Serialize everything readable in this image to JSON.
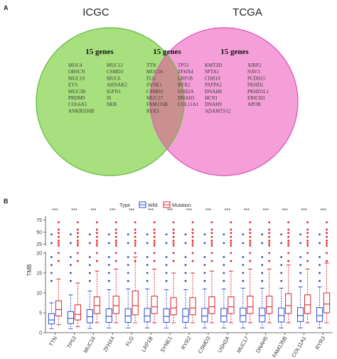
{
  "panel_a": {
    "label": "A",
    "left_set": "ICGC",
    "right_set": "TCGA",
    "left_count": "15 genes",
    "overlap_count": "15 genes",
    "right_count": "15 genes",
    "left_genes_col1": [
      "MUC4",
      "OBSCN",
      "MUC19",
      "EYS",
      "MUC5B",
      "PRDM9",
      "COL6A5",
      "ANKRD30B"
    ],
    "left_genes_col2": [
      "MUC12",
      "CSMD3",
      "MUC6",
      "AHNAK2",
      "IGFN1",
      "SI",
      "NEB"
    ],
    "overlap_genes_col1": [
      "TTN",
      "MUC16",
      "FLG",
      "SYNE1",
      "CSMD3",
      "MUC17",
      "FAM135B",
      "RYR3"
    ],
    "overlap_genes_col2": [
      "TP53",
      "ZFHX4",
      "LRP1B",
      "RYR2",
      "USH2A",
      "DNAH5",
      "COL11A1"
    ],
    "right_genes_col1": [
      "KMT2D",
      "SPTA1",
      "CDH10",
      "PAPPA2",
      "DNAH8",
      "HCN1",
      "DNAH9",
      "ADAMTS12"
    ],
    "right_genes_col2": [
      "XIRP2",
      "NAV3",
      "PCDH15",
      "PKHD1",
      "PKHD1L1",
      "ERICH3",
      "APOB"
    ],
    "colors": {
      "left_fill": "#a8e07f",
      "left_stroke": "#6fbd4a",
      "right_fill": "#f59fd8",
      "right_stroke": "#e05cbf",
      "overlap_fill": "#c9908e"
    }
  },
  "panel_b": {
    "label": "B",
    "chart_data": {
      "type": "boxplot",
      "legend_title": "Type",
      "legend_position": "top",
      "series": [
        {
          "name": "Wild",
          "color": "#2c4bd6"
        },
        {
          "name": "Mutation",
          "color": "#e0242b"
        }
      ],
      "ylabel": "TMB",
      "y_ticks_lower": [
        0,
        5,
        10,
        15,
        20
      ],
      "y_ticks_upper": [
        25,
        50,
        75
      ],
      "y_lower_range": [
        0,
        20
      ],
      "y_upper_range": [
        21,
        80
      ],
      "significance_label": "***",
      "categories": [
        "TTN",
        "TP53",
        "MUC16",
        "ZFHX4",
        "FLG",
        "LRP1B",
        "SYNE1",
        "RYR2",
        "CSMD3",
        "USH2A",
        "MUC17",
        "DNAH5",
        "FAM135B",
        "COL11A1",
        "RYR3"
      ],
      "wild": [
        [
          1.0,
          2.2,
          3.2,
          4.8,
          7.5
        ],
        [
          1.0,
          2.3,
          3.6,
          5.3,
          9.5
        ],
        [
          1.1,
          2.5,
          4.0,
          5.8,
          10.5
        ],
        [
          1.2,
          2.6,
          4.1,
          6.0,
          10.8
        ],
        [
          1.2,
          2.6,
          4.2,
          6.0,
          11.0
        ],
        [
          1.2,
          2.7,
          4.2,
          6.1,
          11.0
        ],
        [
          1.2,
          2.6,
          4.1,
          6.0,
          10.8
        ],
        [
          1.2,
          2.6,
          4.1,
          6.0,
          10.8
        ],
        [
          1.2,
          2.7,
          4.2,
          6.1,
          11.0
        ],
        [
          1.2,
          2.7,
          4.2,
          6.1,
          11.0
        ],
        [
          1.2,
          2.7,
          4.3,
          6.2,
          11.2
        ],
        [
          1.2,
          2.7,
          4.3,
          6.2,
          11.2
        ],
        [
          1.2,
          2.7,
          4.3,
          6.2,
          11.2
        ],
        [
          1.2,
          2.8,
          4.3,
          6.3,
          11.5
        ],
        [
          1.2,
          2.8,
          4.3,
          6.3,
          11.5
        ]
      ],
      "mutation": [
        [
          2.0,
          4.2,
          5.8,
          8.0,
          13.5
        ],
        [
          1.5,
          3.2,
          4.6,
          7.0,
          12.5
        ],
        [
          2.5,
          4.8,
          6.8,
          9.0,
          15.5
        ],
        [
          2.5,
          4.8,
          6.8,
          9.2,
          16.0
        ],
        [
          2.5,
          4.5,
          6.8,
          10.5,
          19.0
        ],
        [
          2.5,
          4.8,
          6.5,
          9.2,
          16.0
        ],
        [
          2.5,
          4.5,
          6.2,
          8.8,
          15.0
        ],
        [
          2.5,
          4.5,
          6.2,
          8.8,
          15.0
        ],
        [
          2.5,
          4.8,
          6.5,
          9.0,
          15.5
        ],
        [
          2.5,
          4.8,
          6.5,
          9.0,
          15.5
        ],
        [
          2.5,
          4.8,
          6.5,
          9.2,
          16.0
        ],
        [
          2.5,
          4.8,
          6.5,
          9.2,
          16.0
        ],
        [
          2.5,
          4.8,
          6.8,
          9.8,
          17.0
        ],
        [
          2.5,
          4.8,
          7.0,
          9.5,
          16.0
        ],
        [
          2.5,
          5.0,
          7.2,
          10.0,
          17.5
        ]
      ],
      "wild_outliers": [
        13,
        15,
        17,
        19,
        27,
        45
      ],
      "mutation_outliers": [
        18,
        20,
        22,
        27,
        32,
        40,
        48,
        55,
        70
      ]
    }
  }
}
